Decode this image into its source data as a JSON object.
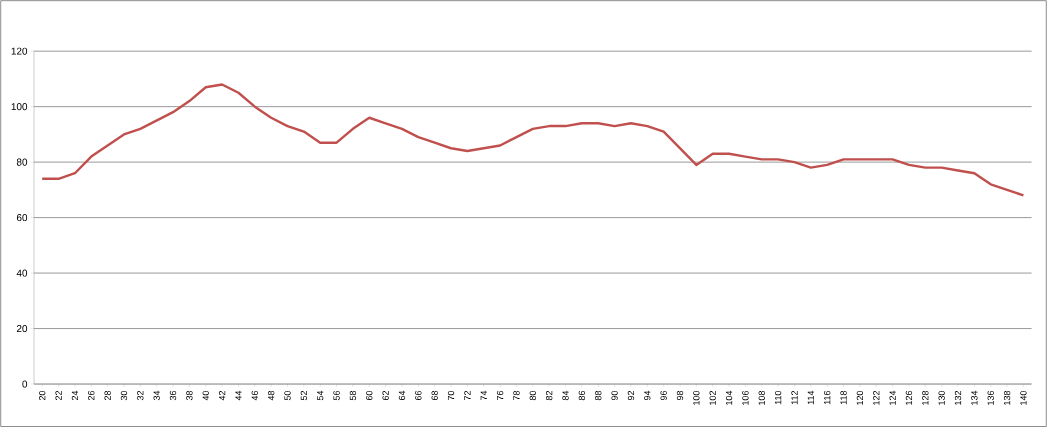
{
  "chart_data": {
    "type": "line",
    "categories": [
      "20",
      "22",
      "24",
      "26",
      "28",
      "30",
      "32",
      "34",
      "36",
      "38",
      "40",
      "42",
      "44",
      "46",
      "48",
      "50",
      "52",
      "54",
      "56",
      "58",
      "60",
      "62",
      "64",
      "66",
      "68",
      "70",
      "72",
      "74",
      "76",
      "78",
      "80",
      "82",
      "84",
      "86",
      "88",
      "90",
      "92",
      "94",
      "96",
      "98",
      "100",
      "102",
      "104",
      "106",
      "108",
      "110",
      "112",
      "114",
      "116",
      "118",
      "120",
      "122",
      "124",
      "126",
      "128",
      "130",
      "132",
      "134",
      "136",
      "138",
      "140"
    ],
    "series": [
      {
        "color": "#c0504d",
        "values": [
          74,
          74,
          76,
          82,
          86,
          90,
          92,
          95,
          98,
          102,
          107,
          108,
          105,
          100,
          96,
          93,
          91,
          87,
          87,
          92,
          96,
          94,
          92,
          89,
          87,
          85,
          84,
          85,
          86,
          89,
          92,
          93,
          93,
          94,
          94,
          93,
          94,
          93,
          91,
          85,
          79,
          83,
          83,
          82,
          81,
          81,
          80,
          78,
          79,
          81,
          81,
          81,
          81,
          79,
          78,
          78,
          77,
          76,
          72,
          70,
          68
        ]
      }
    ],
    "ylim": [
      0,
      120
    ],
    "yticks": [
      0,
      20,
      40,
      60,
      80,
      100,
      120
    ],
    "grid": "y",
    "legend": false,
    "marker": "none",
    "line_style": "solid"
  }
}
